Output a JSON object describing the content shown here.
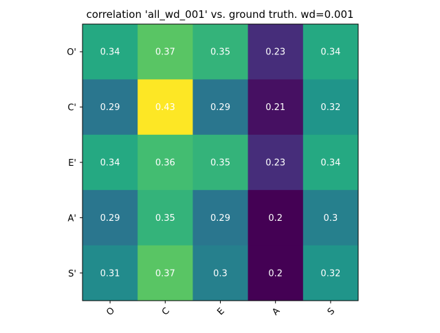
{
  "chart_data": {
    "type": "heatmap",
    "title": "correlation 'all_wd_001' vs. ground truth. wd=0.001",
    "xlabel": "",
    "ylabel": "",
    "x_categories": [
      "O",
      "C",
      "E",
      "A",
      "S"
    ],
    "y_categories": [
      "O'",
      "C'",
      "E'",
      "A'",
      "S'"
    ],
    "values": [
      [
        0.34,
        0.37,
        0.35,
        0.23,
        0.34
      ],
      [
        0.29,
        0.43,
        0.29,
        0.21,
        0.32
      ],
      [
        0.34,
        0.36,
        0.35,
        0.23,
        0.34
      ],
      [
        0.29,
        0.35,
        0.29,
        0.2,
        0.3
      ],
      [
        0.31,
        0.37,
        0.3,
        0.2,
        0.32
      ]
    ],
    "cell_labels": [
      [
        "0.34",
        "0.37",
        "0.35",
        "0.23",
        "0.34"
      ],
      [
        "0.29",
        "0.43",
        "0.29",
        "0.21",
        "0.32"
      ],
      [
        "0.34",
        "0.36",
        "0.35",
        "0.23",
        "0.34"
      ],
      [
        "0.29",
        "0.35",
        "0.29",
        "0.2",
        "0.3"
      ],
      [
        "0.31",
        "0.37",
        "0.3",
        "0.2",
        "0.32"
      ]
    ],
    "colormap": "viridis",
    "color_range": [
      0.2,
      0.43
    ],
    "grid": false,
    "x_tick_rotation_deg": 45
  }
}
